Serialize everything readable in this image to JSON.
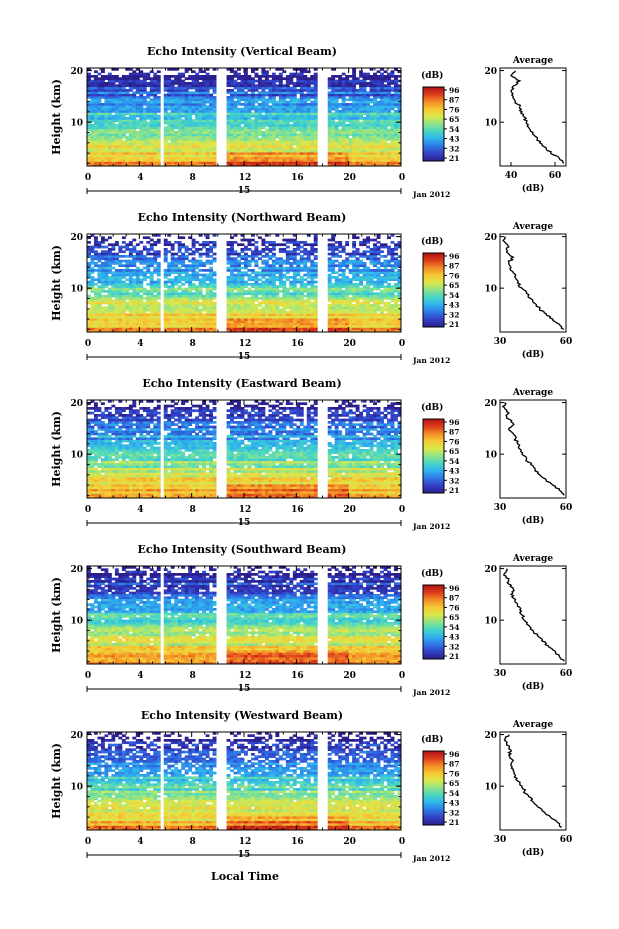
{
  "figure": {
    "bottom_label": "Local Time",
    "date_label": "Jan 2012",
    "day_label": "15",
    "colorbar_unit": "(dB)",
    "colorbar_ticks": [
      "96",
      "87",
      "76",
      "65",
      "54",
      "43",
      "32",
      "21"
    ],
    "colormap": [
      "#2b1f8c",
      "#3340c8",
      "#2e78e6",
      "#2fb2f0",
      "#47d6c4",
      "#8ee38a",
      "#dbe84b",
      "#f7c834",
      "#f28d27",
      "#dd3a1b",
      "#b01414"
    ]
  },
  "chart_data": [
    {
      "type": "heatmap",
      "title": "Echo Intensity (Vertical Beam)",
      "ylabel": "Height (km)",
      "xticks": [
        "0",
        "4",
        "8",
        "12",
        "16",
        "20",
        "0"
      ],
      "yticks": [
        "10",
        "20"
      ],
      "xlim": [
        0,
        24
      ],
      "ylim": [
        1.5,
        20.5
      ],
      "data_gaps_hours": [
        [
          5.5,
          5.9
        ],
        [
          9.8,
          10.7
        ],
        [
          17.7,
          18.3
        ]
      ],
      "missing_fraction": 0.06,
      "profile": {
        "title": "Average",
        "xlabel": "(dB)",
        "xticks": [
          "40",
          "60"
        ],
        "xlim": [
          35,
          65
        ],
        "yticks": [
          "10",
          "20"
        ],
        "height_km": [
          2,
          3,
          4,
          5,
          6,
          7,
          8,
          9,
          10,
          11,
          12,
          13,
          14,
          15,
          16,
          17,
          18,
          19,
          20
        ],
        "avg_db": [
          64,
          62,
          58,
          56,
          53,
          52,
          50,
          48,
          47,
          46,
          45,
          44,
          42,
          41,
          40,
          41,
          44,
          40,
          42
        ]
      }
    },
    {
      "type": "heatmap",
      "title": "Echo Intensity (Northward Beam)",
      "ylabel": "Height (km)",
      "xticks": [
        "0",
        "4",
        "8",
        "12",
        "16",
        "20",
        "0"
      ],
      "yticks": [
        "10",
        "20"
      ],
      "xlim": [
        0,
        24
      ],
      "ylim": [
        1.5,
        20.5
      ],
      "data_gaps_hours": [
        [
          5.5,
          5.9
        ],
        [
          9.8,
          10.7
        ],
        [
          17.7,
          18.3
        ]
      ],
      "missing_fraction": 0.22,
      "profile": {
        "title": "Average",
        "xlabel": "(dB)",
        "xticks": [
          "30",
          "60"
        ],
        "xlim": [
          30,
          60
        ],
        "yticks": [
          "10",
          "20"
        ],
        "height_km": [
          2,
          3,
          4,
          5,
          6,
          7,
          8,
          9,
          10,
          11,
          12,
          13,
          14,
          15,
          16,
          17,
          18,
          19,
          20
        ],
        "avg_db": [
          59,
          57,
          54,
          51,
          48,
          46,
          44,
          42,
          40,
          38,
          37,
          36,
          35,
          34,
          36,
          33,
          34,
          32,
          32
        ]
      }
    },
    {
      "type": "heatmap",
      "title": "Echo Intensity (Eastward Beam)",
      "ylabel": "Height (km)",
      "xticks": [
        "0",
        "4",
        "8",
        "12",
        "16",
        "20",
        "0"
      ],
      "yticks": [
        "10",
        "20"
      ],
      "xlim": [
        0,
        24
      ],
      "ylim": [
        1.5,
        20.5
      ],
      "data_gaps_hours": [
        [
          5.5,
          5.9
        ],
        [
          9.8,
          10.7
        ],
        [
          17.7,
          18.3
        ]
      ],
      "missing_fraction": 0.15,
      "profile": {
        "title": "Average",
        "xlabel": "(dB)",
        "xticks": [
          "30",
          "60"
        ],
        "xlim": [
          30,
          60
        ],
        "yticks": [
          "10",
          "20"
        ],
        "height_km": [
          2,
          3,
          4,
          5,
          6,
          7,
          8,
          9,
          10,
          11,
          12,
          13,
          14,
          15,
          16,
          17,
          18,
          19,
          20
        ],
        "avg_db": [
          59,
          57,
          54,
          51,
          48,
          46,
          44,
          42,
          40,
          39,
          38,
          37,
          36,
          34,
          36,
          33,
          34,
          32,
          32
        ]
      }
    },
    {
      "type": "heatmap",
      "title": "Echo Intensity (Southward Beam)",
      "ylabel": "Height (km)",
      "xticks": [
        "0",
        "4",
        "8",
        "12",
        "16",
        "20",
        "0"
      ],
      "yticks": [
        "10",
        "20"
      ],
      "xlim": [
        0,
        24
      ],
      "ylim": [
        1.5,
        20.5
      ],
      "data_gaps_hours": [
        [
          5.5,
          5.9
        ],
        [
          9.8,
          10.7
        ],
        [
          17.7,
          18.3
        ]
      ],
      "missing_fraction": 0.1,
      "profile": {
        "title": "Average",
        "xlabel": "(dB)",
        "xticks": [
          "30",
          "60"
        ],
        "xlim": [
          30,
          60
        ],
        "yticks": [
          "10",
          "20"
        ],
        "height_km": [
          2,
          3,
          4,
          5,
          6,
          7,
          8,
          9,
          10,
          11,
          12,
          13,
          14,
          15,
          16,
          17,
          18,
          19,
          20
        ],
        "avg_db": [
          59,
          57,
          55,
          52,
          49,
          47,
          45,
          43,
          41,
          40,
          39,
          38,
          37,
          35,
          36,
          34,
          34,
          32,
          33
        ]
      }
    },
    {
      "type": "heatmap",
      "title": "Echo Intensity (Westward Beam)",
      "ylabel": "Height (km)",
      "xticks": [
        "0",
        "4",
        "8",
        "12",
        "16",
        "20",
        "0"
      ],
      "yticks": [
        "10",
        "20"
      ],
      "xlim": [
        0,
        24
      ],
      "ylim": [
        1.5,
        20.5
      ],
      "data_gaps_hours": [
        [
          5.5,
          5.9
        ],
        [
          9.8,
          10.7
        ],
        [
          17.7,
          18.3
        ]
      ],
      "missing_fraction": 0.2,
      "profile": {
        "title": "Average",
        "xlabel": "(dB)",
        "xticks": [
          "30",
          "60"
        ],
        "xlim": [
          30,
          60
        ],
        "yticks": [
          "10",
          "20"
        ],
        "height_km": [
          2,
          3,
          4,
          5,
          6,
          7,
          8,
          9,
          10,
          11,
          12,
          13,
          14,
          15,
          16,
          17,
          18,
          19,
          20
        ],
        "avg_db": [
          58,
          56,
          53,
          50,
          47,
          45,
          43,
          41,
          40,
          38,
          37,
          36,
          35,
          36,
          34,
          35,
          33,
          32,
          34
        ]
      }
    }
  ]
}
